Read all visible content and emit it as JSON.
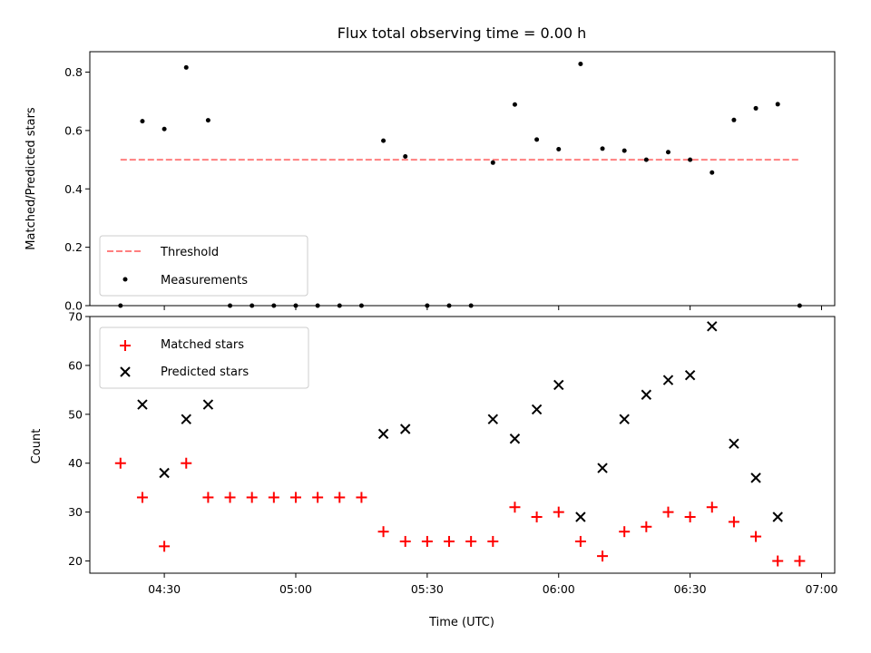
{
  "title": "Flux total observing time = 0.00 h",
  "xlabel": "Time (UTC)",
  "x_tick_labels": [
    "04:30",
    "05:00",
    "05:30",
    "06:00",
    "06:30",
    "07:00"
  ],
  "colors": {
    "threshold": "#ff7f7f",
    "measurements": "#000000",
    "matched": "#ff0000",
    "predicted": "#000000"
  },
  "chart_data": [
    {
      "type": "scatter",
      "ylabel": "Matched/Predicted stars",
      "ylim": [
        0,
        0.87
      ],
      "yticks": [
        0.0,
        0.2,
        0.4,
        0.6,
        0.8
      ],
      "xlim": [
        "04:13",
        "07:03"
      ],
      "legend_position": "lower-left",
      "threshold": {
        "name": "Threshold",
        "value": 0.5,
        "x_range": [
          "04:20",
          "06:55"
        ],
        "style": "dashed"
      },
      "series": [
        {
          "name": "Measurements",
          "marker": "dot",
          "points": [
            [
              "04:20",
              0.0
            ],
            [
              "04:25",
              0.632
            ],
            [
              "04:30",
              0.605
            ],
            [
              "04:35",
              0.816
            ],
            [
              "04:40",
              0.635
            ],
            [
              "04:45",
              0.0
            ],
            [
              "04:50",
              0.0
            ],
            [
              "04:55",
              0.0
            ],
            [
              "05:00",
              0.0
            ],
            [
              "05:05",
              0.0
            ],
            [
              "05:10",
              0.0
            ],
            [
              "05:15",
              0.0
            ],
            [
              "05:20",
              0.565
            ],
            [
              "05:25",
              0.511
            ],
            [
              "05:30",
              0.0
            ],
            [
              "05:35",
              0.0
            ],
            [
              "05:40",
              0.0
            ],
            [
              "05:45",
              0.49
            ],
            [
              "05:50",
              0.689
            ],
            [
              "05:55",
              0.569
            ],
            [
              "06:00",
              0.536
            ],
            [
              "06:05",
              0.828
            ],
            [
              "06:10",
              0.538
            ],
            [
              "06:15",
              0.531
            ],
            [
              "06:20",
              0.5
            ],
            [
              "06:25",
              0.526
            ],
            [
              "06:30",
              0.5
            ],
            [
              "06:35",
              0.456
            ],
            [
              "06:40",
              0.636
            ],
            [
              "06:45",
              0.676
            ],
            [
              "06:50",
              0.69
            ],
            [
              "06:55",
              0.0
            ]
          ]
        }
      ]
    },
    {
      "type": "scatter",
      "ylabel": "Count",
      "ylim": [
        17.5,
        70
      ],
      "yticks": [
        20,
        30,
        40,
        50,
        60,
        70
      ],
      "xlim": [
        "04:13",
        "07:03"
      ],
      "legend_position": "upper-left",
      "series": [
        {
          "name": "Matched stars",
          "marker": "plus",
          "points": [
            [
              "04:20",
              40
            ],
            [
              "04:25",
              33
            ],
            [
              "04:30",
              23
            ],
            [
              "04:35",
              40
            ],
            [
              "04:40",
              33
            ],
            [
              "04:45",
              33
            ],
            [
              "04:50",
              33
            ],
            [
              "04:55",
              33
            ],
            [
              "05:00",
              33
            ],
            [
              "05:05",
              33
            ],
            [
              "05:10",
              33
            ],
            [
              "05:15",
              33
            ],
            [
              "05:20",
              26
            ],
            [
              "05:25",
              24
            ],
            [
              "05:30",
              24
            ],
            [
              "05:35",
              24
            ],
            [
              "05:40",
              24
            ],
            [
              "05:45",
              24
            ],
            [
              "05:50",
              31
            ],
            [
              "05:55",
              29
            ],
            [
              "06:00",
              30
            ],
            [
              "06:05",
              24
            ],
            [
              "06:10",
              21
            ],
            [
              "06:15",
              26
            ],
            [
              "06:20",
              27
            ],
            [
              "06:25",
              30
            ],
            [
              "06:30",
              29
            ],
            [
              "06:35",
              31
            ],
            [
              "06:40",
              28
            ],
            [
              "06:45",
              25
            ],
            [
              "06:50",
              20
            ],
            [
              "06:55",
              20
            ]
          ]
        },
        {
          "name": "Predicted stars",
          "marker": "x",
          "points": [
            [
              "04:25",
              52
            ],
            [
              "04:30",
              38
            ],
            [
              "04:35",
              49
            ],
            [
              "04:40",
              52
            ],
            [
              "05:20",
              46
            ],
            [
              "05:25",
              47
            ],
            [
              "05:45",
              49
            ],
            [
              "05:50",
              45
            ],
            [
              "05:55",
              51
            ],
            [
              "06:00",
              56
            ],
            [
              "06:05",
              29
            ],
            [
              "06:10",
              39
            ],
            [
              "06:15",
              49
            ],
            [
              "06:20",
              54
            ],
            [
              "06:25",
              57
            ],
            [
              "06:30",
              58
            ],
            [
              "06:35",
              68
            ],
            [
              "06:40",
              44
            ],
            [
              "06:45",
              37
            ],
            [
              "06:50",
              29
            ]
          ]
        }
      ]
    }
  ]
}
